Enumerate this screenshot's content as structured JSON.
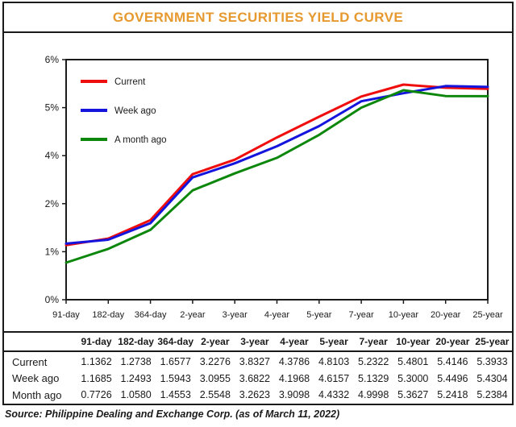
{
  "title": "GOVERNMENT SECURITIES YIELD CURVE",
  "colors": {
    "title_accent": "#E6992E",
    "axis_ink": "#1a1a1a",
    "current": "#f00d0d",
    "week_ago": "#1414dd",
    "month_ago": "#0c870c"
  },
  "legend": {
    "items": [
      {
        "label": "Current",
        "color": "#f00d0d"
      },
      {
        "label": "Week ago",
        "color": "#1414dd"
      },
      {
        "label": "A month ago",
        "color": "#0c870c"
      }
    ]
  },
  "chart_data": {
    "type": "line",
    "title": "GOVERNMENT SECURITIES YIELD CURVE",
    "categories": [
      "91-day",
      "182-day",
      "364-day",
      "2-year",
      "3-year",
      "4-year",
      "5-year",
      "7-year",
      "10-year",
      "20-year",
      "25-year"
    ],
    "series": [
      {
        "name": "Current",
        "color": "#f00d0d",
        "values": [
          1.1362,
          1.2738,
          1.6577,
          3.2276,
          3.8327,
          4.3786,
          4.8103,
          5.2322,
          5.4801,
          5.4146,
          5.3933
        ]
      },
      {
        "name": "Week ago",
        "color": "#1414dd",
        "values": [
          1.1685,
          1.2493,
          1.5943,
          3.0955,
          3.6822,
          4.1968,
          4.6157,
          5.1329,
          5.3,
          5.4496,
          5.4304
        ]
      },
      {
        "name": "A month ago",
        "color": "#0c870c",
        "values": [
          0.7726,
          1.058,
          1.4553,
          2.5548,
          3.2623,
          3.9098,
          4.4332,
          4.9998,
          5.3627,
          5.2418,
          5.2384
        ]
      }
    ],
    "xlabel": "",
    "ylabel": "",
    "ylim": [
      0,
      6
    ],
    "grid": false,
    "legend_position": "upper-left-inside",
    "y_axis": {
      "tick_labels": [
        "6%",
        "5%",
        "4%",
        "2%",
        "1%",
        "0%"
      ],
      "tick_values": [
        6,
        5,
        4,
        2,
        1,
        0
      ]
    }
  },
  "table": {
    "columns": [
      "91-day",
      "182-day",
      "364-day",
      "2-year",
      "3-year",
      "4-year",
      "5-year",
      "7-year",
      "10-year",
      "20-year",
      "25-year"
    ],
    "rows": [
      {
        "label": "Current",
        "values": [
          "1.1362",
          "1.2738",
          "1.6577",
          "3.2276",
          "3.8327",
          "4.3786",
          "4.8103",
          "5.2322",
          "5.4801",
          "5.4146",
          "5.3933"
        ]
      },
      {
        "label": "Week ago",
        "values": [
          "1.1685",
          "1.2493",
          "1.5943",
          "3.0955",
          "3.6822",
          "4.1968",
          "4.6157",
          "5.1329",
          "5.3000",
          "5.4496",
          "5.4304"
        ]
      },
      {
        "label": "Month ago",
        "values": [
          "0.7726",
          "1.0580",
          "1.4553",
          "2.5548",
          "3.2623",
          "3.9098",
          "4.4332",
          "4.9998",
          "5.3627",
          "5.2418",
          "5.2384"
        ]
      }
    ]
  },
  "source": "Source: Philippine Dealing and Exchange Corp. (as of March 11, 2022)"
}
